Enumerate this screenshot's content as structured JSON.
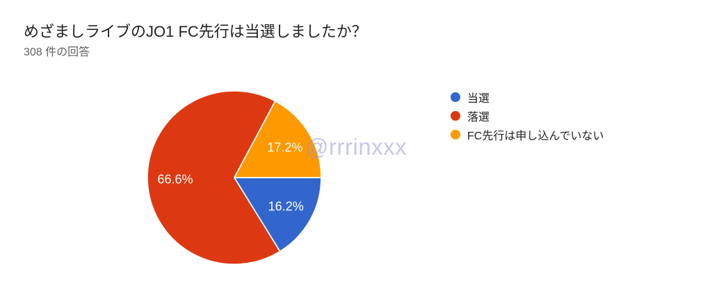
{
  "background_color": "#ffffff",
  "header": {
    "title": "めざましライブのJO1 FC先行は当選しましたか？",
    "subtitle": "308 件の回答"
  },
  "chart_data": {
    "type": "pie",
    "title": "めざましライブのJO1 FC先行は当選しましたか？",
    "subtitle": "308 件の回答",
    "response_count": 308,
    "categories": [
      "当選",
      "落選",
      "FC先行は申し込んでいない"
    ],
    "values": [
      16.2,
      66.6,
      17.2
    ],
    "slice_labels": [
      "16.2%",
      "66.6%",
      "17.2%"
    ],
    "colors": [
      "#3366cc",
      "#dc3912",
      "#ff9900"
    ],
    "slice_label_color": "#ffffff",
    "start_angle_deg": 0,
    "direction": "clockwise",
    "legend_position": "right",
    "legend": [
      {
        "label": "当選",
        "color": "#3366cc"
      },
      {
        "label": "落選",
        "color": "#dc3912"
      },
      {
        "label": "FC先行は申し込んでいない",
        "color": "#ff9900"
      }
    ]
  },
  "watermark": {
    "text": "@rrrinxxx",
    "color": "#c9c9ec"
  }
}
